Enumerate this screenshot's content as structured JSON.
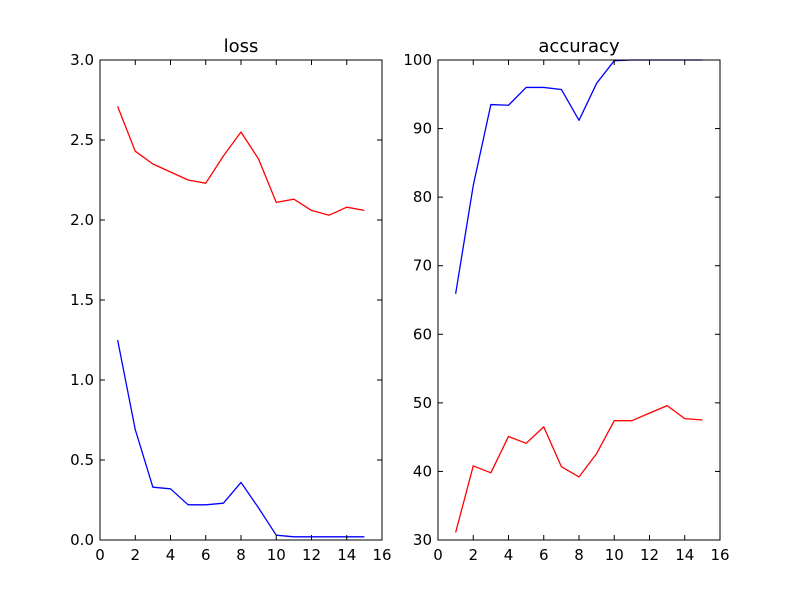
{
  "chart_data": [
    {
      "type": "line",
      "title": "loss",
      "xlabel": "",
      "ylabel": "",
      "xlim": [
        0,
        16
      ],
      "ylim": [
        0.0,
        3.0
      ],
      "xticks": [
        0,
        2,
        4,
        6,
        8,
        10,
        12,
        14,
        16
      ],
      "yticks": [
        0.0,
        0.5,
        1.0,
        1.5,
        2.0,
        2.5,
        3.0
      ],
      "xtick_labels": [
        "0",
        "2",
        "4",
        "6",
        "8",
        "10",
        "12",
        "14",
        "16"
      ],
      "ytick_labels": [
        "0.0",
        "0.5",
        "1.0",
        "1.5",
        "2.0",
        "2.5",
        "3.0"
      ],
      "grid": false,
      "x": [
        1,
        2,
        3,
        4,
        5,
        6,
        7,
        8,
        9,
        10,
        11,
        12,
        13,
        14,
        15
      ],
      "series": [
        {
          "color": "#0000ff",
          "values": [
            1.25,
            0.69,
            0.33,
            0.32,
            0.22,
            0.22,
            0.23,
            0.36,
            0.2,
            0.03,
            0.02,
            0.02,
            0.02,
            0.02,
            0.02
          ]
        },
        {
          "color": "#ff0000",
          "values": [
            2.71,
            2.43,
            2.35,
            2.3,
            2.25,
            2.23,
            2.4,
            2.55,
            2.38,
            2.11,
            2.13,
            2.06,
            2.03,
            2.08,
            2.06
          ]
        }
      ]
    },
    {
      "type": "line",
      "title": "accuracy",
      "xlabel": "",
      "ylabel": "",
      "xlim": [
        0,
        16
      ],
      "ylim": [
        30,
        100
      ],
      "xticks": [
        0,
        2,
        4,
        6,
        8,
        10,
        12,
        14,
        16
      ],
      "yticks": [
        30,
        40,
        50,
        60,
        70,
        80,
        90,
        100
      ],
      "xtick_labels": [
        "0",
        "2",
        "4",
        "6",
        "8",
        "10",
        "12",
        "14",
        "16"
      ],
      "ytick_labels": [
        "30",
        "40",
        "50",
        "60",
        "70",
        "80",
        "90",
        "100"
      ],
      "grid": false,
      "x": [
        1,
        2,
        3,
        4,
        5,
        6,
        7,
        8,
        9,
        10,
        11,
        12,
        13,
        14,
        15
      ],
      "series": [
        {
          "color": "#0000ff",
          "values": [
            65.9,
            81.7,
            93.5,
            93.4,
            96.0,
            96.0,
            95.7,
            91.2,
            96.6,
            99.9,
            100.0,
            100.0,
            100.0,
            100.0,
            100.0
          ]
        },
        {
          "color": "#ff0000",
          "values": [
            31.1,
            40.8,
            39.8,
            45.1,
            44.1,
            46.5,
            40.7,
            39.2,
            42.6,
            47.4,
            47.4,
            48.5,
            49.6,
            47.7,
            47.5
          ]
        }
      ]
    }
  ]
}
